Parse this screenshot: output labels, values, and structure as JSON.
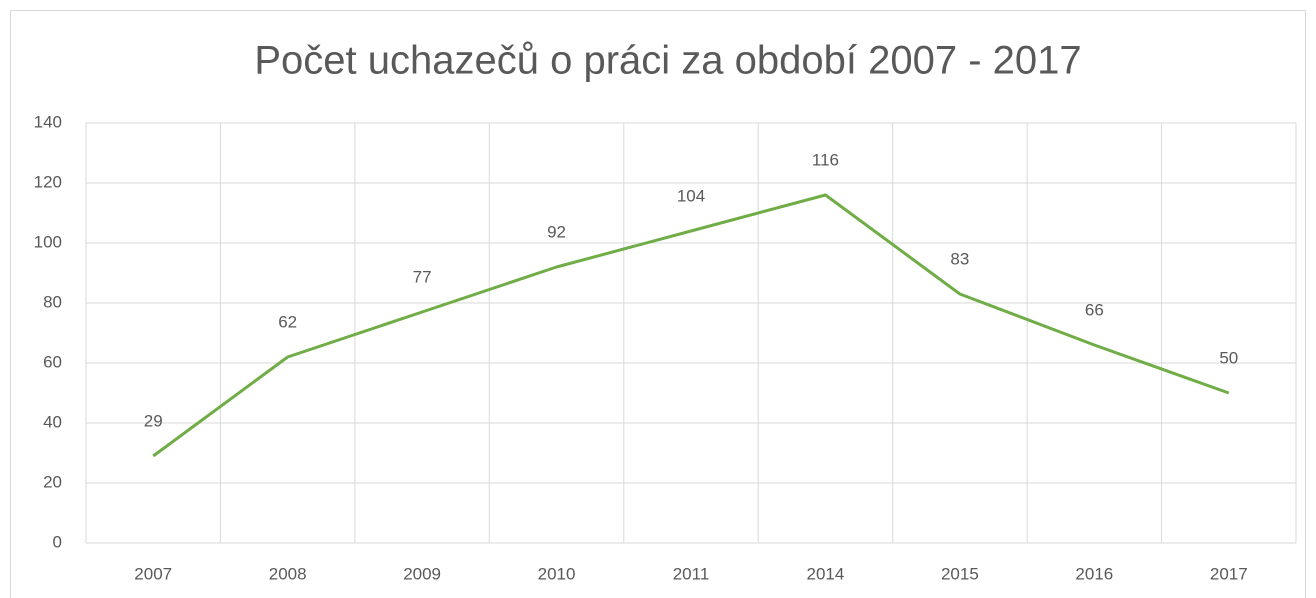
{
  "chart_data": {
    "type": "line",
    "title": "Počet uchazečů o práci za období 2007 - 2017",
    "categories": [
      "2007",
      "2008",
      "2009",
      "2010",
      "2011",
      "2014",
      "2015",
      "2016",
      "2017"
    ],
    "values": [
      29,
      62,
      77,
      92,
      104,
      116,
      83,
      66,
      50
    ],
    "color": "#70ad47",
    "ylim": [
      0,
      140
    ],
    "yticks": [
      0,
      20,
      40,
      60,
      80,
      100,
      120,
      140
    ],
    "grid": true,
    "data_labels": true
  }
}
